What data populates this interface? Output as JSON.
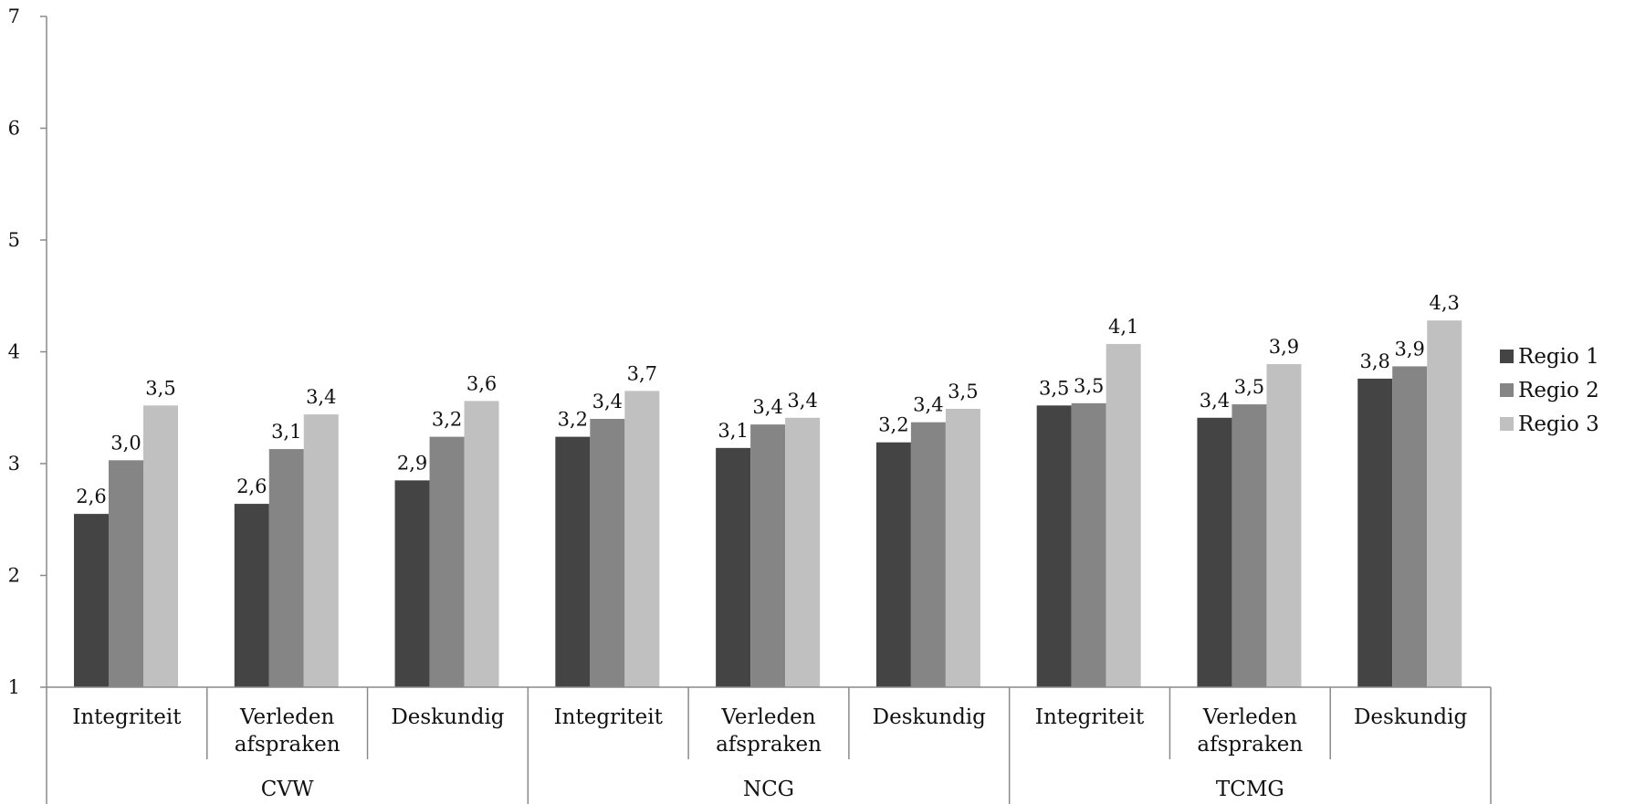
{
  "chart_data": {
    "type": "bar",
    "title": "",
    "xlabel": "",
    "ylabel": "",
    "ylim": [
      1,
      7
    ],
    "yticks": [
      "1",
      "2",
      "3",
      "4",
      "5",
      "6",
      "7"
    ],
    "grid": false,
    "legend_position": "right",
    "groups": [
      {
        "label": "CVW",
        "categories": [
          {
            "line1": "Integriteit",
            "line2": ""
          },
          {
            "line1": "Verleden",
            "line2": "afspraken"
          },
          {
            "line1": "Deskundig",
            "line2": ""
          }
        ]
      },
      {
        "label": "NCG",
        "categories": [
          {
            "line1": "Integriteit",
            "line2": ""
          },
          {
            "line1": "Verleden",
            "line2": "afspraken"
          },
          {
            "line1": "Deskundig",
            "line2": ""
          }
        ]
      },
      {
        "label": "TCMG",
        "categories": [
          {
            "line1": "Integriteit",
            "line2": ""
          },
          {
            "line1": "Verleden",
            "line2": "afspraken"
          },
          {
            "line1": "Deskundig",
            "line2": ""
          }
        ]
      }
    ],
    "series": [
      {
        "name": "Regio 1",
        "color": "#444444",
        "values": [
          2.55,
          2.64,
          2.85,
          3.24,
          3.14,
          3.19,
          3.52,
          3.41,
          3.76
        ],
        "labels": [
          "2,6",
          "2,6",
          "2,9",
          "3,2",
          "3,1",
          "3,2",
          "3,5",
          "3,4",
          "3,8"
        ]
      },
      {
        "name": "Regio 2",
        "color": "#858585",
        "values": [
          3.03,
          3.13,
          3.24,
          3.4,
          3.35,
          3.37,
          3.54,
          3.53,
          3.87
        ],
        "labels": [
          "3,0",
          "3,1",
          "3,2",
          "3,4",
          "3,4",
          "3,4",
          "3,5",
          "3,5",
          "3,9"
        ]
      },
      {
        "name": "Regio 3",
        "color": "#c0c0c0",
        "values": [
          3.52,
          3.44,
          3.56,
          3.65,
          3.41,
          3.49,
          4.07,
          3.89,
          4.28
        ],
        "labels": [
          "3,5",
          "3,4",
          "3,6",
          "3,7",
          "3,4",
          "3,5",
          "4,1",
          "3,9",
          "4,3"
        ]
      }
    ]
  }
}
